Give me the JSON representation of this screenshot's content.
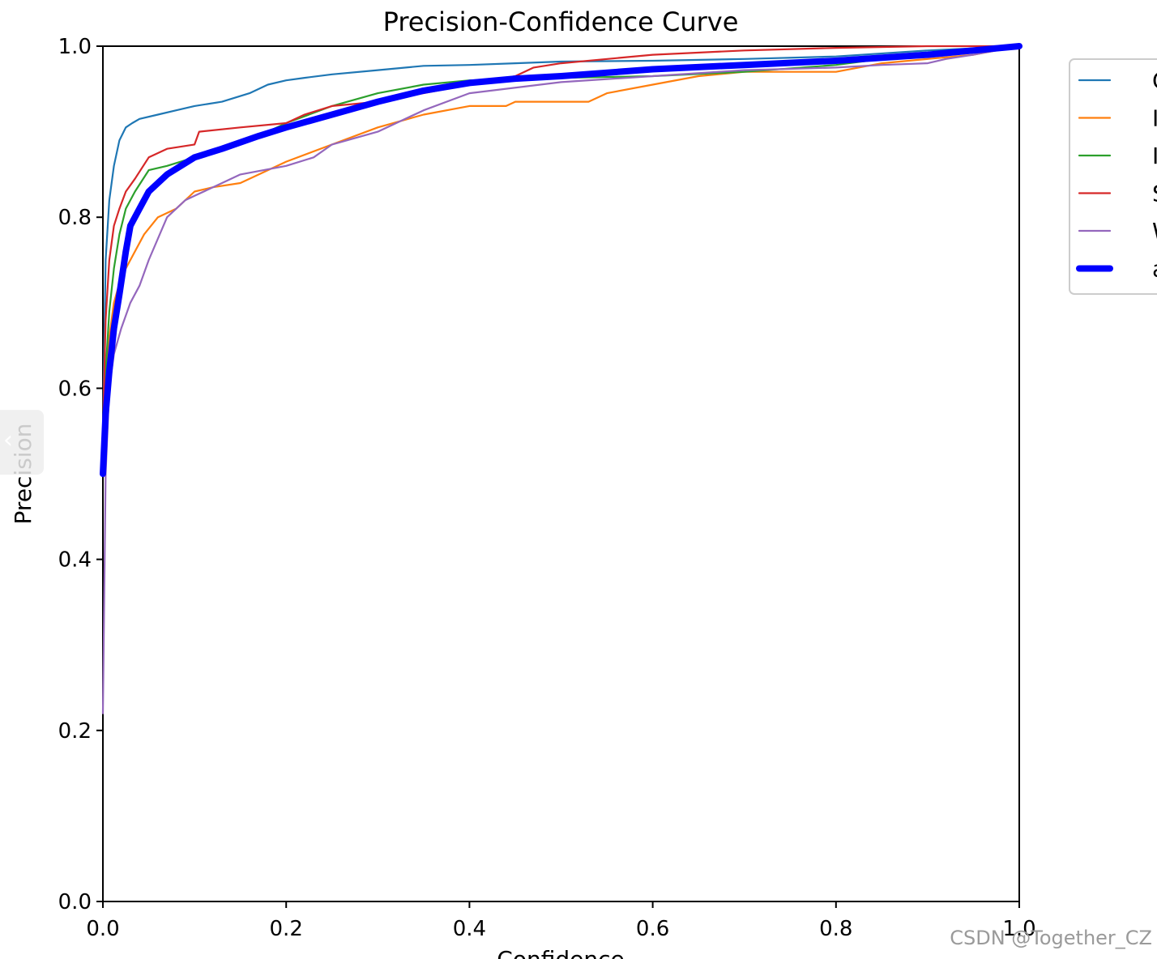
{
  "chart_data": {
    "type": "line",
    "title": "Precision-Confidence Curve",
    "xlabel": "Confidence",
    "ylabel": "Precision",
    "xlim": [
      0,
      1
    ],
    "ylim": [
      0,
      1
    ],
    "xticks": [
      "0.0",
      "0.2",
      "0.4",
      "0.6",
      "0.8",
      "1.0"
    ],
    "yticks": [
      "0.0",
      "0.2",
      "0.4",
      "0.6",
      "0.8",
      "1.0"
    ],
    "grid": false,
    "legend_placement": "upper-right-outside",
    "series": [
      {
        "name": "C",
        "color": "#1f77b4",
        "x": [
          0,
          0.003,
          0.007,
          0.012,
          0.018,
          0.025,
          0.032,
          0.04,
          0.06,
          0.08,
          0.1,
          0.13,
          0.16,
          0.18,
          0.2,
          0.22,
          0.25,
          0.3,
          0.35,
          0.4,
          0.45,
          0.5,
          0.6,
          0.7,
          0.8,
          0.9,
          1.0
        ],
        "y": [
          0.55,
          0.75,
          0.82,
          0.86,
          0.89,
          0.905,
          0.91,
          0.915,
          0.92,
          0.925,
          0.93,
          0.935,
          0.945,
          0.955,
          0.96,
          0.963,
          0.967,
          0.972,
          0.977,
          0.978,
          0.98,
          0.982,
          0.983,
          0.985,
          0.988,
          0.995,
          1.0
        ]
      },
      {
        "name": "I",
        "color": "#ff7f0e",
        "x": [
          0,
          0.003,
          0.007,
          0.012,
          0.02,
          0.03,
          0.045,
          0.06,
          0.08,
          0.1,
          0.12,
          0.15,
          0.2,
          0.25,
          0.3,
          0.35,
          0.4,
          0.44,
          0.45,
          0.5,
          0.53,
          0.55,
          0.6,
          0.65,
          0.7,
          0.75,
          0.8,
          0.85,
          0.9,
          0.95,
          1.0
        ],
        "y": [
          0.5,
          0.6,
          0.66,
          0.7,
          0.73,
          0.75,
          0.78,
          0.8,
          0.81,
          0.83,
          0.835,
          0.84,
          0.865,
          0.885,
          0.905,
          0.92,
          0.93,
          0.93,
          0.935,
          0.935,
          0.935,
          0.945,
          0.955,
          0.965,
          0.97,
          0.97,
          0.97,
          0.98,
          0.985,
          0.99,
          1.0
        ]
      },
      {
        "name": "I",
        "color": "#2ca02c",
        "x": [
          0,
          0.003,
          0.007,
          0.012,
          0.018,
          0.025,
          0.035,
          0.05,
          0.07,
          0.1,
          0.13,
          0.17,
          0.2,
          0.25,
          0.3,
          0.35,
          0.4,
          0.5,
          0.6,
          0.7,
          0.8,
          0.85,
          0.9,
          0.95,
          1.0
        ],
        "y": [
          0.5,
          0.62,
          0.69,
          0.74,
          0.78,
          0.81,
          0.83,
          0.855,
          0.86,
          0.87,
          0.88,
          0.895,
          0.91,
          0.93,
          0.945,
          0.955,
          0.96,
          0.963,
          0.965,
          0.97,
          0.978,
          0.985,
          0.99,
          0.995,
          1.0
        ]
      },
      {
        "name": "S",
        "color": "#d62728",
        "x": [
          0,
          0.003,
          0.007,
          0.012,
          0.018,
          0.025,
          0.035,
          0.05,
          0.07,
          0.1,
          0.105,
          0.15,
          0.2,
          0.22,
          0.25,
          0.3,
          0.35,
          0.4,
          0.45,
          0.47,
          0.5,
          0.6,
          0.7,
          0.8,
          0.9,
          1.0
        ],
        "y": [
          0.55,
          0.68,
          0.75,
          0.79,
          0.81,
          0.83,
          0.845,
          0.87,
          0.88,
          0.885,
          0.9,
          0.905,
          0.91,
          0.92,
          0.93,
          0.935,
          0.945,
          0.955,
          0.965,
          0.975,
          0.98,
          0.99,
          0.995,
          0.998,
          1.0,
          1.0
        ]
      },
      {
        "name": "W",
        "color": "#9467bd",
        "x": [
          0,
          0.003,
          0.007,
          0.012,
          0.02,
          0.03,
          0.04,
          0.05,
          0.07,
          0.09,
          0.1,
          0.13,
          0.15,
          0.2,
          0.23,
          0.25,
          0.3,
          0.35,
          0.4,
          0.5,
          0.6,
          0.7,
          0.8,
          0.85,
          0.9,
          0.92,
          0.95,
          1.0
        ],
        "y": [
          0.22,
          0.5,
          0.6,
          0.64,
          0.67,
          0.7,
          0.72,
          0.75,
          0.8,
          0.82,
          0.825,
          0.84,
          0.85,
          0.86,
          0.87,
          0.885,
          0.9,
          0.925,
          0.945,
          0.958,
          0.965,
          0.972,
          0.975,
          0.978,
          0.98,
          0.985,
          0.99,
          1.0
        ]
      },
      {
        "name": "a",
        "color": "#0000ff",
        "bold": true,
        "x": [
          0,
          0.003,
          0.007,
          0.012,
          0.018,
          0.025,
          0.03,
          0.04,
          0.05,
          0.07,
          0.1,
          0.13,
          0.17,
          0.2,
          0.25,
          0.3,
          0.35,
          0.4,
          0.45,
          0.5,
          0.6,
          0.7,
          0.8,
          0.9,
          0.95,
          1.0
        ],
        "y": [
          0.5,
          0.57,
          0.62,
          0.67,
          0.71,
          0.76,
          0.79,
          0.81,
          0.83,
          0.85,
          0.87,
          0.88,
          0.895,
          0.905,
          0.92,
          0.935,
          0.948,
          0.957,
          0.962,
          0.965,
          0.973,
          0.978,
          0.983,
          0.99,
          0.995,
          1.0
        ]
      }
    ]
  },
  "watermark": "CSDN @Together_CZ",
  "collapse_tab_glyph": "‹"
}
